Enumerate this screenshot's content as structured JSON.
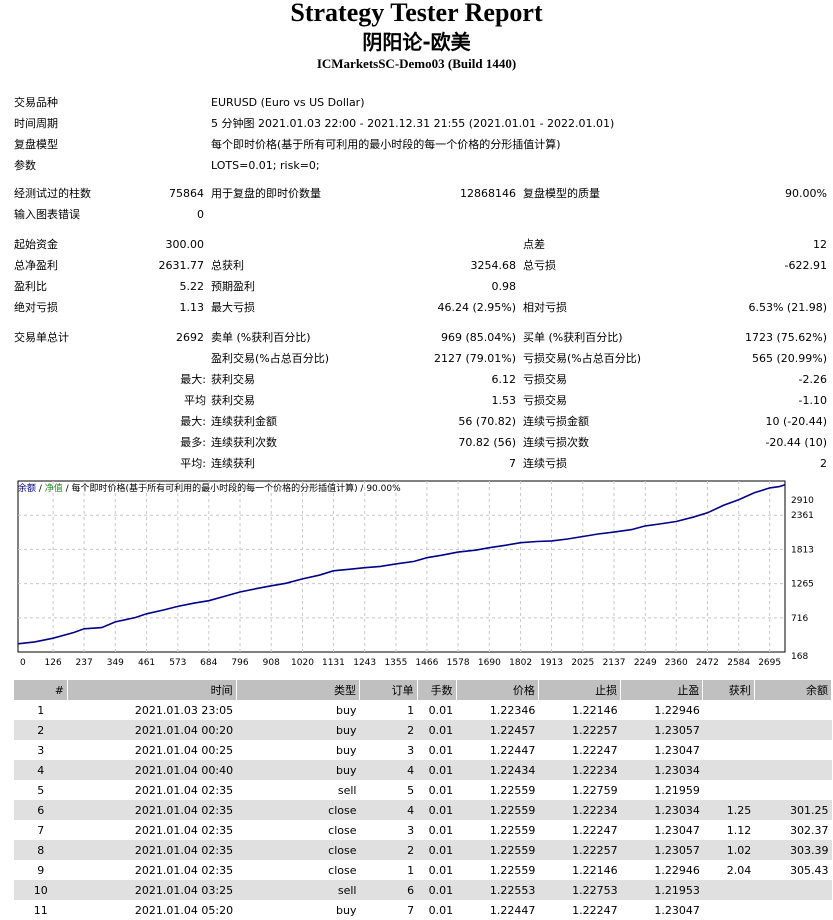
{
  "header": {
    "title": "Strategy Tester Report",
    "ea_name": "阴阳论-欧美",
    "server": "ICMarketsSC-Demo03 (Build 1440)"
  },
  "settings": {
    "symbol_label": "交易品种",
    "symbol_value": "EURUSD (Euro vs US Dollar)",
    "period_label": "时间周期",
    "period_value": "5 分钟图 2021.01.03 22:00 - 2021.12.31 21:55 (2021.01.01 - 2022.01.01)",
    "model_label": "复盘模型",
    "model_value": "每个即时价格(基于所有可利用的最小时段的每一个价格的分形插值计算)",
    "params_label": "参数",
    "params_value": "LOTS=0.01; risk=0;"
  },
  "quality": {
    "bars_label": "经测试过的柱数",
    "bars_value": "75864",
    "ticks_label": "用于复盘的即时价数量",
    "ticks_value": "12868146",
    "quality_label": "复盘模型的质量",
    "quality_value": "90.00%",
    "errors_label": "输入图表错误",
    "errors_value": "0"
  },
  "results": {
    "deposit_label": "起始资金",
    "deposit_value": "300.00",
    "spread_label": "点差",
    "spread_value": "12",
    "net_label": "总净盈利",
    "net_value": "2631.77",
    "gross_profit_label": "总获利",
    "gross_profit_value": "3254.68",
    "gross_loss_label": "总亏损",
    "gross_loss_value": "-622.91",
    "pf_label": "盈利比",
    "pf_value": "5.22",
    "payoff_label": "预期盈利",
    "payoff_value": "0.98",
    "abs_dd_label": "绝对亏损",
    "abs_dd_value": "1.13",
    "max_dd_label": "最大亏损",
    "max_dd_value": "46.24 (2.95%)",
    "rel_dd_label": "相对亏损",
    "rel_dd_value": "6.53% (21.98)"
  },
  "trades": {
    "total_label": "交易单总计",
    "total_value": "2692",
    "short_label": "卖单 (%获利百分比)",
    "short_value": "969 (85.04%)",
    "long_label": "买单 (%获利百分比)",
    "long_value": "1723 (75.62%)",
    "profit_trades_label": "盈利交易(%占总百分比)",
    "profit_trades_value": "2127 (79.01%)",
    "loss_trades_label": "亏损交易(%占总百分比)",
    "loss_trades_value": "565 (20.99%)",
    "max_prefix": "最大:",
    "largest_profit_label": "获利交易",
    "largest_profit_value": "6.12",
    "largest_loss_label": "亏损交易",
    "largest_loss_value": "-2.26",
    "avg_prefix": "平均",
    "avg_profit_label": "获利交易",
    "avg_profit_value": "1.53",
    "avg_loss_label": "亏损交易",
    "avg_loss_value": "-1.10",
    "max2_prefix": "最大:",
    "max_cons_wins_label": "连续获利金额",
    "max_cons_wins_value": "56 (70.82)",
    "max_cons_losses_label": "连续亏损金额",
    "max_cons_losses_value": "10 (-20.44)",
    "most_prefix": "最多:",
    "max_cons_profit_label": "连续获利次数",
    "max_cons_profit_value": "70.82 (56)",
    "max_cons_loss_label": "连续亏损次数",
    "max_cons_loss_value": "-20.44 (10)",
    "avg2_prefix": "平均:",
    "avg_cons_wins_label": "连续获利",
    "avg_cons_wins_value": "7",
    "avg_cons_losses_label": "连续亏损",
    "avg_cons_losses_value": "2"
  },
  "chart_title": {
    "balance": "余额",
    "sep1": " / ",
    "equity": "净值",
    "rest": " / 每个即时价格(基于所有可利用的最小时段的每一个价格的分形插值计算) / 90.00%"
  },
  "chart_data": {
    "type": "line",
    "x_ticks": [
      "0",
      "126",
      "237",
      "349",
      "461",
      "573",
      "684",
      "796",
      "908",
      "1020",
      "1131",
      "1243",
      "1355",
      "1466",
      "1578",
      "1690",
      "1802",
      "1913",
      "2025",
      "2137",
      "2249",
      "2360",
      "2472",
      "2584",
      "2695"
    ],
    "y_ticks": [
      "2910",
      "2361",
      "1813",
      "1265",
      "716",
      "168"
    ],
    "ylim": [
      168,
      2910
    ],
    "xlim": [
      0,
      2750
    ],
    "series": [
      {
        "color": "#00008b",
        "points": [
          [
            0,
            300
          ],
          [
            60,
            330
          ],
          [
            126,
            390
          ],
          [
            200,
            480
          ],
          [
            237,
            540
          ],
          [
            300,
            560
          ],
          [
            349,
            650
          ],
          [
            420,
            720
          ],
          [
            461,
            780
          ],
          [
            520,
            840
          ],
          [
            573,
            900
          ],
          [
            630,
            950
          ],
          [
            684,
            990
          ],
          [
            740,
            1060
          ],
          [
            796,
            1130
          ],
          [
            860,
            1190
          ],
          [
            908,
            1230
          ],
          [
            960,
            1270
          ],
          [
            1020,
            1340
          ],
          [
            1080,
            1400
          ],
          [
            1131,
            1470
          ],
          [
            1200,
            1500
          ],
          [
            1243,
            1520
          ],
          [
            1300,
            1540
          ],
          [
            1355,
            1580
          ],
          [
            1420,
            1620
          ],
          [
            1466,
            1680
          ],
          [
            1520,
            1720
          ],
          [
            1578,
            1770
          ],
          [
            1640,
            1800
          ],
          [
            1690,
            1840
          ],
          [
            1750,
            1880
          ],
          [
            1802,
            1920
          ],
          [
            1860,
            1940
          ],
          [
            1913,
            1950
          ],
          [
            1970,
            1980
          ],
          [
            2025,
            2020
          ],
          [
            2080,
            2060
          ],
          [
            2137,
            2090
          ],
          [
            2200,
            2130
          ],
          [
            2249,
            2190
          ],
          [
            2300,
            2220
          ],
          [
            2360,
            2260
          ],
          [
            2420,
            2330
          ],
          [
            2472,
            2400
          ],
          [
            2530,
            2520
          ],
          [
            2584,
            2610
          ],
          [
            2640,
            2720
          ],
          [
            2695,
            2800
          ],
          [
            2730,
            2820
          ],
          [
            2750,
            2850
          ]
        ]
      }
    ]
  },
  "orders": {
    "columns": [
      "#",
      "时间",
      "类型",
      "订单",
      "手数",
      "价格",
      "止损",
      "止盈",
      "获利",
      "余额"
    ],
    "rows": [
      [
        "1",
        "2021.01.03 23:05",
        "buy",
        "1",
        "0.01",
        "1.22346",
        "1.22146",
        "1.22946",
        "",
        ""
      ],
      [
        "2",
        "2021.01.04 00:20",
        "buy",
        "2",
        "0.01",
        "1.22457",
        "1.22257",
        "1.23057",
        "",
        ""
      ],
      [
        "3",
        "2021.01.04 00:25",
        "buy",
        "3",
        "0.01",
        "1.22447",
        "1.22247",
        "1.23047",
        "",
        ""
      ],
      [
        "4",
        "2021.01.04 00:40",
        "buy",
        "4",
        "0.01",
        "1.22434",
        "1.22234",
        "1.23034",
        "",
        ""
      ],
      [
        "5",
        "2021.01.04 02:35",
        "sell",
        "5",
        "0.01",
        "1.22559",
        "1.22759",
        "1.21959",
        "",
        ""
      ],
      [
        "6",
        "2021.01.04 02:35",
        "close",
        "4",
        "0.01",
        "1.22559",
        "1.22234",
        "1.23034",
        "1.25",
        "301.25"
      ],
      [
        "7",
        "2021.01.04 02:35",
        "close",
        "3",
        "0.01",
        "1.22559",
        "1.22247",
        "1.23047",
        "1.12",
        "302.37"
      ],
      [
        "8",
        "2021.01.04 02:35",
        "close",
        "2",
        "0.01",
        "1.22559",
        "1.22257",
        "1.23057",
        "1.02",
        "303.39"
      ],
      [
        "9",
        "2021.01.04 02:35",
        "close",
        "1",
        "0.01",
        "1.22559",
        "1.22146",
        "1.22946",
        "2.04",
        "305.43"
      ],
      [
        "10",
        "2021.01.04 03:25",
        "sell",
        "6",
        "0.01",
        "1.22553",
        "1.22753",
        "1.21953",
        "",
        ""
      ],
      [
        "11",
        "2021.01.04 05:20",
        "buy",
        "7",
        "0.01",
        "1.22447",
        "1.22247",
        "1.23047",
        "",
        ""
      ]
    ]
  }
}
